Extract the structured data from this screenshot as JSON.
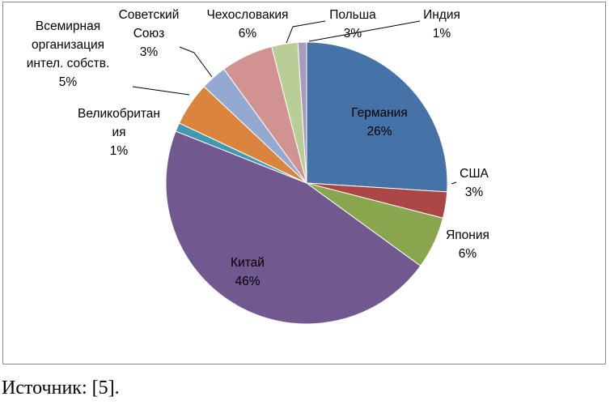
{
  "chart_data": {
    "type": "pie",
    "title": "",
    "slices": [
      {
        "label": [
          "Германия"
        ],
        "value": 26,
        "pct_label": "26%",
        "color": "#4572A7"
      },
      {
        "label": [
          "США"
        ],
        "value": 3,
        "pct_label": "3%",
        "color": "#AA4643"
      },
      {
        "label": [
          "Япония"
        ],
        "value": 6,
        "pct_label": "6%",
        "color": "#89A54E"
      },
      {
        "label": [
          "Китай"
        ],
        "value": 46,
        "pct_label": "46%",
        "color": "#71588F"
      },
      {
        "label": [
          "Великобритан",
          "ия"
        ],
        "value": 1,
        "pct_label": "1%",
        "color": "#4198AF"
      },
      {
        "label": [
          "Всемирная",
          "организация",
          "интел. собств."
        ],
        "value": 5,
        "pct_label": "5%",
        "color": "#DB843D"
      },
      {
        "label": [
          "Советский",
          "Союз"
        ],
        "value": 3,
        "pct_label": "3%",
        "color": "#93A9CF"
      },
      {
        "label": [
          "Чехословакия"
        ],
        "value": 6,
        "pct_label": "6%",
        "color": "#D19392"
      },
      {
        "label": [
          "Польша"
        ],
        "value": 3,
        "pct_label": "3%",
        "color": "#B9CD96"
      },
      {
        "label": [
          "Индия"
        ],
        "value": 1,
        "pct_label": "1%",
        "color": "#A99BBD"
      }
    ]
  },
  "source": {
    "text": "Источник: [5]."
  }
}
